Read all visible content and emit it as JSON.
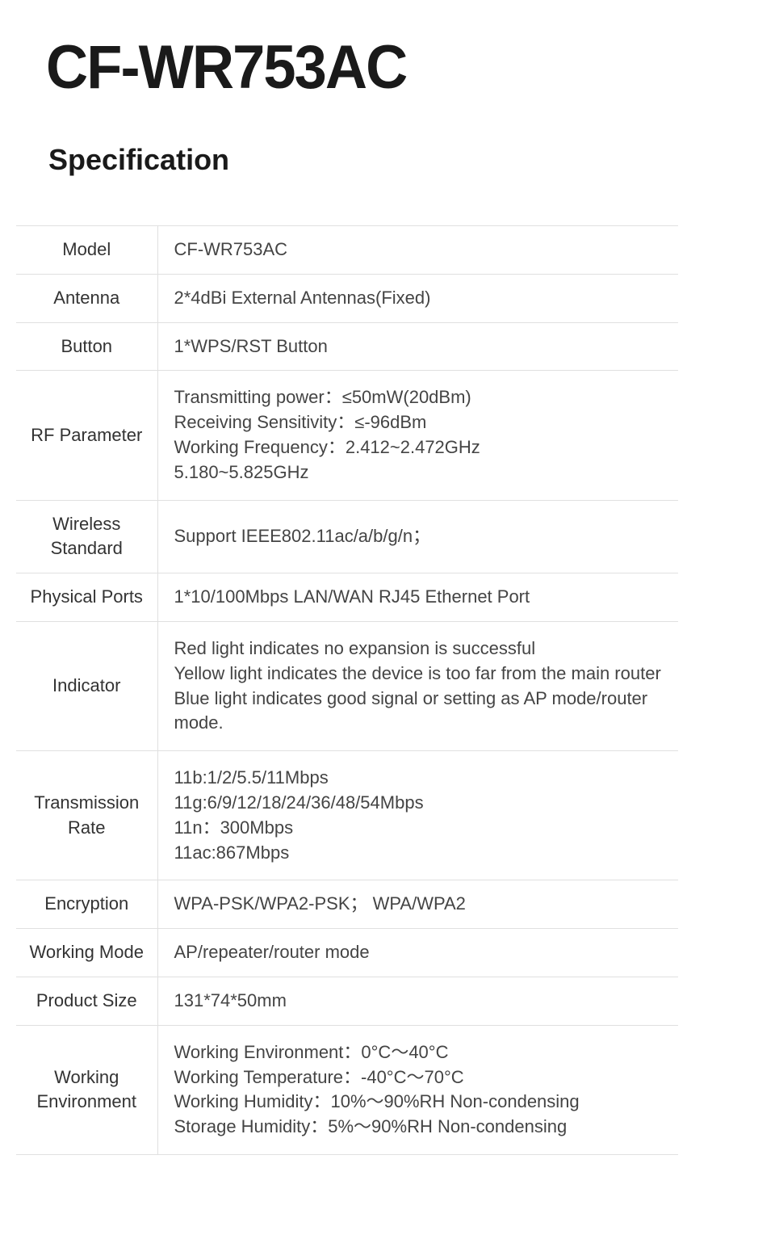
{
  "header": {
    "product_title": "CF-WR753AC",
    "section_heading": "Specification"
  },
  "table": {
    "border_color": "#e0e0e0",
    "label_fontsize": 22,
    "value_fontsize": 22,
    "text_color": "#444444",
    "rows": [
      {
        "label": "Model",
        "value": "CF-WR753AC"
      },
      {
        "label": "Antenna",
        "value": "2*4dBi External Antennas(Fixed)"
      },
      {
        "label": "Button",
        "value": "1*WPS/RST Button"
      },
      {
        "label": "RF Parameter",
        "value": "Transmitting power：≤50mW(20dBm)\nReceiving Sensitivity：≤-96dBm\nWorking Frequency：2.412~2.472GHz\n                                      5.180~5.825GHz"
      },
      {
        "label": "Wireless\nStandard",
        "value": "Support IEEE802.11ac/a/b/g/n；"
      },
      {
        "label": "Physical Ports",
        "value": "1*10/100Mbps LAN/WAN RJ45 Ethernet Port"
      },
      {
        "label": "Indicator",
        "value": "Red light indicates no expansion is successful\nYellow light indicates the device is too far from the main router\nBlue light indicates good signal or setting as AP mode/router mode."
      },
      {
        "label": "Transmission\nRate",
        "value": "11b:1/2/5.5/11Mbps\n11g:6/9/12/18/24/36/48/54Mbps\n11n：300Mbps\n11ac:867Mbps"
      },
      {
        "label": "Encryption",
        "value": "WPA-PSK/WPA2-PSK；   WPA/WPA2"
      },
      {
        "label": "Working Mode",
        "value": "AP/repeater/router mode"
      },
      {
        "label": "Product Size",
        "value": "131*74*50mm"
      },
      {
        "label": "Working\nEnvironment",
        "value": "Working Environment：0°C～40°C\nWorking Temperature：-40°C～70°C\nWorking Humidity：10%～90%RH Non-condensing\nStorage Humidity：5%～90%RH Non-condensing"
      }
    ]
  }
}
